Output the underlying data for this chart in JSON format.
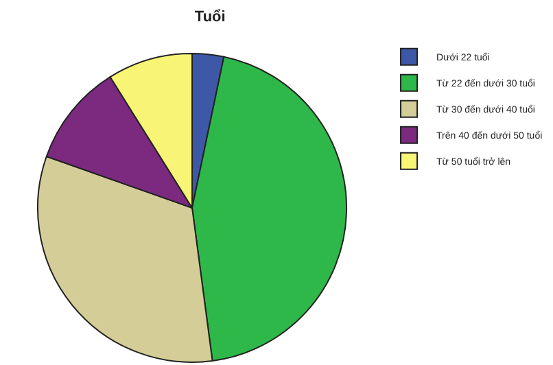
{
  "chart_data": {
    "type": "pie",
    "title": "Tuổi",
    "categories": [
      "Dưới 22 tuổi",
      "Từ 22 đến dưới 30 tuổi",
      "Từ 30 đến dưới 40 tuổi",
      "Trên 40 đến dưới 50 tuổi",
      "Từ 50 tuổi trở lên"
    ],
    "values": [
      3.3,
      44.6,
      32.5,
      10.7,
      8.9
    ],
    "colors": [
      "#3e58a8",
      "#2eb84a",
      "#d4cd98",
      "#7b2a7f",
      "#f8f576"
    ],
    "legend": "top right"
  }
}
